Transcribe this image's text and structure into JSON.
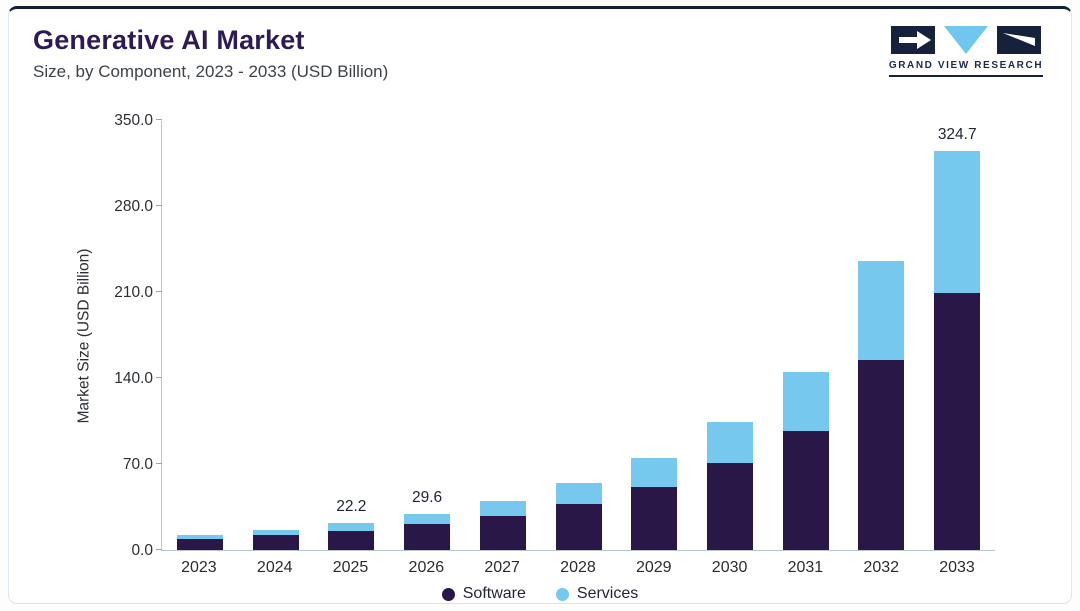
{
  "header": {
    "title": "Generative AI Market",
    "subtitle": "Size, by Component, 2023 - 2033 (USD Billion)",
    "logo_text": "GRAND VIEW RESEARCH"
  },
  "colors": {
    "software": "#281747",
    "services": "#76c8ef",
    "title": "#2e1a54",
    "top_accent": "#13203c",
    "card_border": "#dce6ed"
  },
  "chart_data": {
    "type": "bar",
    "stacked": true,
    "title": "Generative AI Market",
    "subtitle": "Size, by Component, 2023 - 2033 (USD Billion)",
    "xlabel": "",
    "ylabel": "Market Size (USD Billion)",
    "ylim": [
      0,
      350
    ],
    "yticks": [
      0,
      70,
      140,
      210,
      280,
      350
    ],
    "ytick_labels": [
      "0.0",
      "70.0",
      "140.0",
      "210.0",
      "280.0",
      "350.0"
    ],
    "grid": false,
    "legend_position": "bottom",
    "categories": [
      "2023",
      "2024",
      "2025",
      "2026",
      "2027",
      "2028",
      "2029",
      "2030",
      "2031",
      "2032",
      "2033"
    ],
    "series": [
      {
        "name": "Software",
        "color": "#281747",
        "values": [
          9.0,
          11.9,
          15.8,
          20.9,
          28.0,
          37.6,
          51.0,
          70.5,
          97.0,
          155.0,
          209.0
        ]
      },
      {
        "name": "Services",
        "color": "#76c8ef",
        "values": [
          3.5,
          4.7,
          6.4,
          8.7,
          12.0,
          16.9,
          24.0,
          33.5,
          48.0,
          80.0,
          115.7
        ]
      }
    ],
    "totals": [
      12.5,
      16.6,
      22.2,
      29.6,
      40.0,
      54.5,
      75.0,
      104.0,
      145.0,
      235.0,
      324.7
    ],
    "bar_value_labels": [
      "",
      "",
      "22.2",
      "29.6",
      "",
      "",
      "",
      "",
      "",
      "",
      "324.7"
    ]
  }
}
